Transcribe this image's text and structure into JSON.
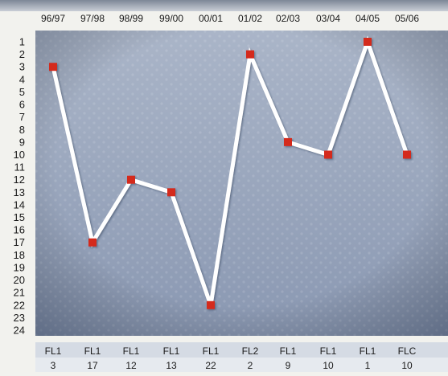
{
  "chart_data": {
    "type": "line",
    "categories": [
      "96/97",
      "97/98",
      "98/99",
      "99/00",
      "00/01",
      "01/02",
      "02/03",
      "03/04",
      "04/05",
      "05/06"
    ],
    "divisions": [
      "FL1",
      "FL1",
      "FL1",
      "FL1",
      "FL1",
      "FL2",
      "FL1",
      "FL1",
      "FL1",
      "FLC"
    ],
    "positions": [
      3,
      17,
      12,
      13,
      22,
      2,
      9,
      10,
      1,
      10
    ],
    "series": [
      {
        "values": [
          3,
          17,
          12,
          13,
          22,
          2,
          9,
          10,
          1,
          10
        ]
      }
    ],
    "y_ticks": [
      1,
      2,
      3,
      4,
      5,
      6,
      7,
      8,
      9,
      10,
      11,
      12,
      13,
      14,
      15,
      16,
      17,
      18,
      19,
      20,
      21,
      22,
      23,
      24
    ],
    "ylim": [
      1,
      24
    ],
    "y_inverted": true,
    "grid": false,
    "colors": {
      "line": "#ffffff",
      "marker": "#d42a1e",
      "plot_bg_top": "#aab5c8",
      "plot_bg_bottom": "#8a98b2",
      "text": "#1a1a1a"
    }
  }
}
